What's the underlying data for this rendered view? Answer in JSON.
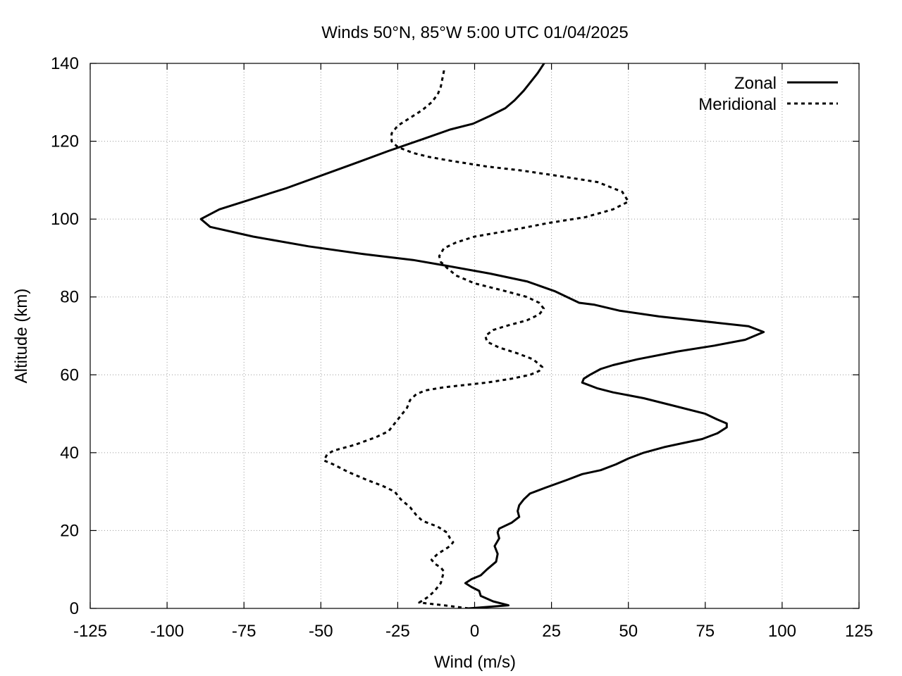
{
  "chart_data": {
    "type": "line",
    "title": "Winds 50°N, 85°W 5:00 UTC 01/04/2025",
    "xlabel": "Wind (m/s)",
    "ylabel": "Altitude (km)",
    "xlim": [
      -125,
      125
    ],
    "ylim": [
      0,
      140
    ],
    "x_ticks": [
      -125,
      -100,
      -75,
      -50,
      -25,
      0,
      25,
      50,
      75,
      100,
      125
    ],
    "y_ticks": [
      0,
      20,
      40,
      60,
      80,
      100,
      120,
      140
    ],
    "x_tick_labels": [
      "-125",
      "-100",
      "-75",
      "-50",
      "-25",
      "0",
      "25",
      "50",
      "75",
      "100",
      "125"
    ],
    "y_tick_labels": [
      "0",
      "20",
      "40",
      "60",
      "80",
      "100",
      "120",
      "140"
    ],
    "grid": true,
    "legend_position": "top-right",
    "series": [
      {
        "name": "Zonal",
        "style": "solid",
        "points": [
          [
            -2,
            0
          ],
          [
            11,
            0.8
          ],
          [
            6,
            1.8
          ],
          [
            2,
            3.2
          ],
          [
            1.5,
            4.5
          ],
          [
            -1,
            5.5
          ],
          [
            -3,
            6.5
          ],
          [
            -1,
            7.5
          ],
          [
            2,
            8.5
          ],
          [
            4,
            10
          ],
          [
            7,
            12
          ],
          [
            7.5,
            14
          ],
          [
            6.5,
            16
          ],
          [
            8,
            18
          ],
          [
            7.5,
            19.5
          ],
          [
            8,
            20.5
          ],
          [
            12,
            22
          ],
          [
            14.5,
            23.5
          ],
          [
            14,
            25
          ],
          [
            14.5,
            26.5
          ],
          [
            16,
            28
          ],
          [
            18,
            29.5
          ],
          [
            23,
            31
          ],
          [
            30,
            33
          ],
          [
            35,
            34.5
          ],
          [
            41,
            35.5
          ],
          [
            46,
            37
          ],
          [
            50,
            38.5
          ],
          [
            55,
            40
          ],
          [
            62,
            41.5
          ],
          [
            68,
            42.5
          ],
          [
            74,
            43.5
          ],
          [
            79,
            45
          ],
          [
            82,
            46.5
          ],
          [
            82,
            47.5
          ],
          [
            79,
            48.5
          ],
          [
            75,
            50
          ],
          [
            65,
            52
          ],
          [
            55,
            54
          ],
          [
            45,
            55.5
          ],
          [
            40,
            56.5
          ],
          [
            35,
            58
          ],
          [
            35.5,
            59
          ],
          [
            37.5,
            60
          ],
          [
            41,
            61.5
          ],
          [
            45,
            62.5
          ],
          [
            53,
            64
          ],
          [
            66,
            66
          ],
          [
            78,
            67.5
          ],
          [
            88,
            69
          ],
          [
            94,
            71
          ],
          [
            89,
            72.5
          ],
          [
            60,
            75
          ],
          [
            47,
            76.5
          ],
          [
            39,
            78
          ],
          [
            34,
            78.5
          ],
          [
            26,
            81.5
          ],
          [
            17,
            84
          ],
          [
            5,
            86
          ],
          [
            -9,
            88
          ],
          [
            -20,
            89.5
          ],
          [
            -36,
            91
          ],
          [
            -54,
            93
          ],
          [
            -72,
            95.5
          ],
          [
            -86,
            98
          ],
          [
            -89,
            100
          ],
          [
            -83,
            102.5
          ],
          [
            -61,
            108
          ],
          [
            -40,
            114
          ],
          [
            -28,
            117.5
          ],
          [
            -17,
            120.5
          ],
          [
            -8,
            123
          ],
          [
            -0.5,
            124.5
          ],
          [
            5,
            126.5
          ],
          [
            10,
            128.5
          ],
          [
            13,
            130.5
          ],
          [
            16,
            133
          ],
          [
            18.5,
            135.5
          ],
          [
            20.5,
            137.5
          ],
          [
            23,
            140.5
          ]
        ]
      },
      {
        "name": "Meridional",
        "style": "dashed",
        "points": [
          [
            -2,
            0
          ],
          [
            -10,
            0.8
          ],
          [
            -18,
            1.5
          ],
          [
            -15,
            3
          ],
          [
            -13,
            4.5
          ],
          [
            -11,
            6.5
          ],
          [
            -10.5,
            8
          ],
          [
            -10,
            9.5
          ],
          [
            -11,
            10.5
          ],
          [
            -13,
            11.5
          ],
          [
            -14,
            12.5
          ],
          [
            -12,
            14
          ],
          [
            -10,
            15
          ],
          [
            -8,
            16
          ],
          [
            -7,
            17
          ],
          [
            -8,
            18
          ],
          [
            -9,
            19.5
          ],
          [
            -12,
            21
          ],
          [
            -17,
            22.5
          ],
          [
            -19,
            24
          ],
          [
            -21,
            26
          ],
          [
            -24,
            28
          ],
          [
            -26,
            30
          ],
          [
            -30,
            31.5
          ],
          [
            -35,
            33
          ],
          [
            -41,
            35
          ],
          [
            -46,
            37
          ],
          [
            -49,
            38
          ],
          [
            -48,
            39.5
          ],
          [
            -46,
            40.5
          ],
          [
            -39,
            42
          ],
          [
            -32,
            44
          ],
          [
            -28,
            45.5
          ],
          [
            -26,
            47.5
          ],
          [
            -24,
            49.5
          ],
          [
            -22,
            51.5
          ],
          [
            -21,
            53.5
          ],
          [
            -19,
            55
          ],
          [
            -16,
            56
          ],
          [
            -10,
            56.8
          ],
          [
            4,
            58
          ],
          [
            12,
            59
          ],
          [
            18,
            60
          ],
          [
            21,
            61
          ],
          [
            22,
            62
          ],
          [
            20.5,
            63
          ],
          [
            19,
            64
          ],
          [
            14,
            65.5
          ],
          [
            8,
            67
          ],
          [
            4,
            68.5
          ],
          [
            3.5,
            70
          ],
          [
            6,
            71.5
          ],
          [
            10,
            72.5
          ],
          [
            17,
            74
          ],
          [
            21,
            75.5
          ],
          [
            22.5,
            77
          ],
          [
            21,
            78.5
          ],
          [
            17,
            80
          ],
          [
            10,
            81.5
          ],
          [
            0,
            83.5
          ],
          [
            -6,
            85.5
          ],
          [
            -9,
            87.5
          ],
          [
            -11,
            89
          ],
          [
            -11.5,
            90.5
          ],
          [
            -10,
            92.5
          ],
          [
            -6,
            94
          ],
          [
            0,
            95.5
          ],
          [
            11,
            97
          ],
          [
            24,
            99
          ],
          [
            36,
            100.5
          ],
          [
            45,
            102.5
          ],
          [
            50,
            104.5
          ],
          [
            48,
            107
          ],
          [
            40,
            109.5
          ],
          [
            28,
            111
          ],
          [
            15,
            112.5
          ],
          [
            4,
            113.5
          ],
          [
            -8,
            115
          ],
          [
            -15,
            116
          ],
          [
            -20,
            117
          ],
          [
            -25,
            118.5
          ],
          [
            -27,
            120
          ],
          [
            -27,
            122
          ],
          [
            -25,
            124
          ],
          [
            -21,
            126
          ],
          [
            -17,
            128
          ],
          [
            -14,
            130
          ],
          [
            -12,
            132
          ],
          [
            -11,
            134
          ],
          [
            -10.5,
            136
          ],
          [
            -10,
            138
          ],
          [
            -10,
            139
          ]
        ]
      }
    ]
  }
}
